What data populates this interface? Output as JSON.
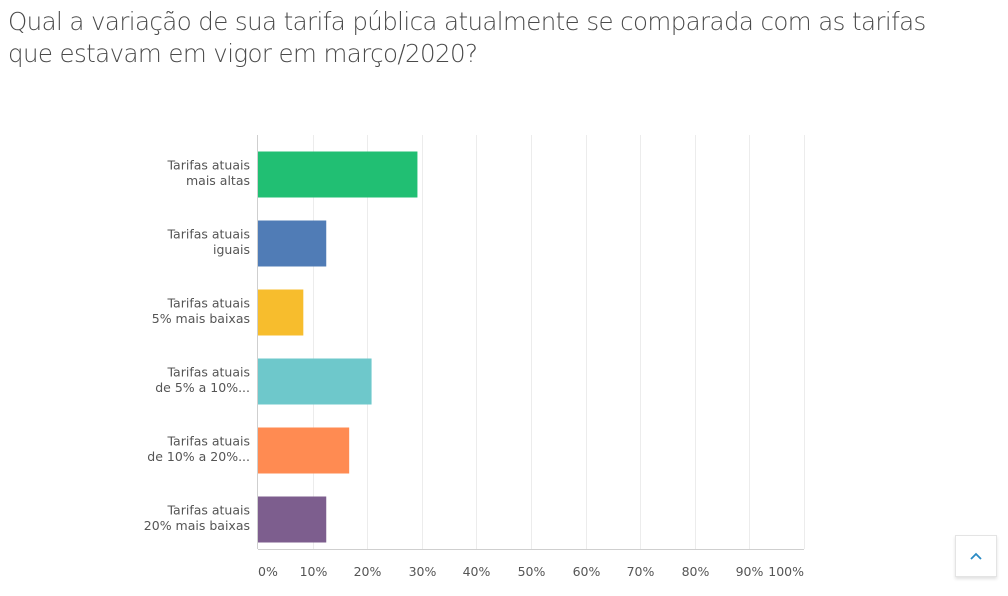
{
  "question": {
    "line1": "Qual a variação de sua tarifa pública atualmente se comparada com as tarifas",
    "line2": "que estavam em vigor em março/2020?"
  },
  "chart_data": {
    "type": "bar",
    "orientation": "horizontal",
    "title": "Qual a variação de sua tarifa pública atualmente se comparada com as tarifas que estavam em vigor em março/2020?",
    "categories": [
      [
        "Tarifas atuais",
        "mais altas"
      ],
      [
        "Tarifas atuais",
        "iguais"
      ],
      [
        "Tarifas atuais",
        "5% mais baixas"
      ],
      [
        "Tarifas atuais",
        "de 5% a 10%..."
      ],
      [
        "Tarifas atuais",
        "de 10% a 20%..."
      ],
      [
        "Tarifas atuais",
        "20% mais baixas"
      ]
    ],
    "values": [
      29.2,
      12.5,
      8.3,
      20.8,
      16.7,
      12.5
    ],
    "colors": [
      "#21bf73",
      "#507cb6",
      "#f7bd2d",
      "#6ec8cb",
      "#ff8b52",
      "#7d5e8e"
    ],
    "xlim": [
      0,
      100
    ],
    "xticks": [
      "0%",
      "10%",
      "20%",
      "30%",
      "40%",
      "50%",
      "60%",
      "70%",
      "80%",
      "90%",
      "100%"
    ],
    "grid": true,
    "xlabel": "",
    "ylabel": ""
  },
  "ui": {
    "scroll_top_icon": "chevron-up-icon",
    "accent": "#2a8ac4"
  }
}
